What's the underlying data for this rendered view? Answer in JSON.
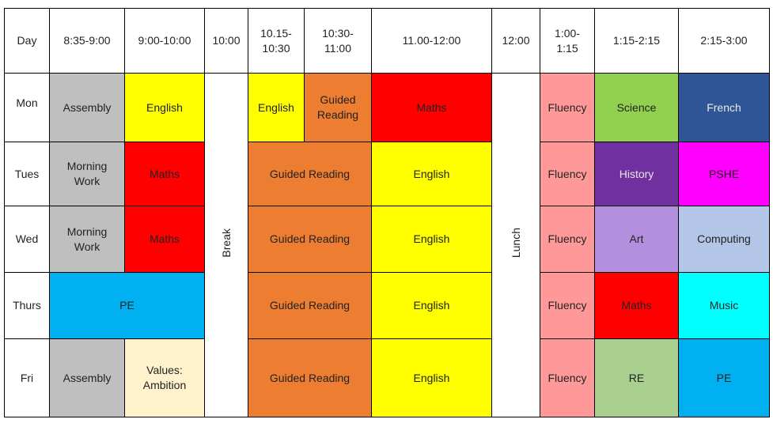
{
  "header": [
    "Day",
    "8:35-9:00",
    "9:00-10:00",
    "10:00",
    "10.15-10:30",
    "10:30-11:00",
    "11.00-12:00",
    "12:00",
    "1:00-1:15",
    "1:15-2:15",
    "2:15-3:00"
  ],
  "break": "Break",
  "lunch": "Lunch",
  "rows": [
    {
      "day": "Mon",
      "cells": [
        "Assembly",
        "English",
        "English",
        "Guided Reading",
        "Maths",
        "Fluency",
        "Science",
        "French"
      ]
    },
    {
      "day": "Tues",
      "cells": [
        "Morning Work",
        "Maths",
        "Guided Reading",
        "English",
        "Fluency",
        "History",
        "PSHE"
      ]
    },
    {
      "day": "Wed",
      "cells": [
        "Morning Work",
        "Maths",
        "Guided Reading",
        "English",
        "Fluency",
        "Art",
        "Computing"
      ]
    },
    {
      "day": "Thurs",
      "cells": [
        "PE",
        "Guided Reading",
        "English",
        "Fluency",
        "Maths",
        "Music"
      ]
    },
    {
      "day": "Fri",
      "cells": [
        "Assembly",
        "Values: Ambition",
        "Guided Reading",
        "English",
        "Fluency",
        "RE",
        "PE"
      ]
    }
  ]
}
